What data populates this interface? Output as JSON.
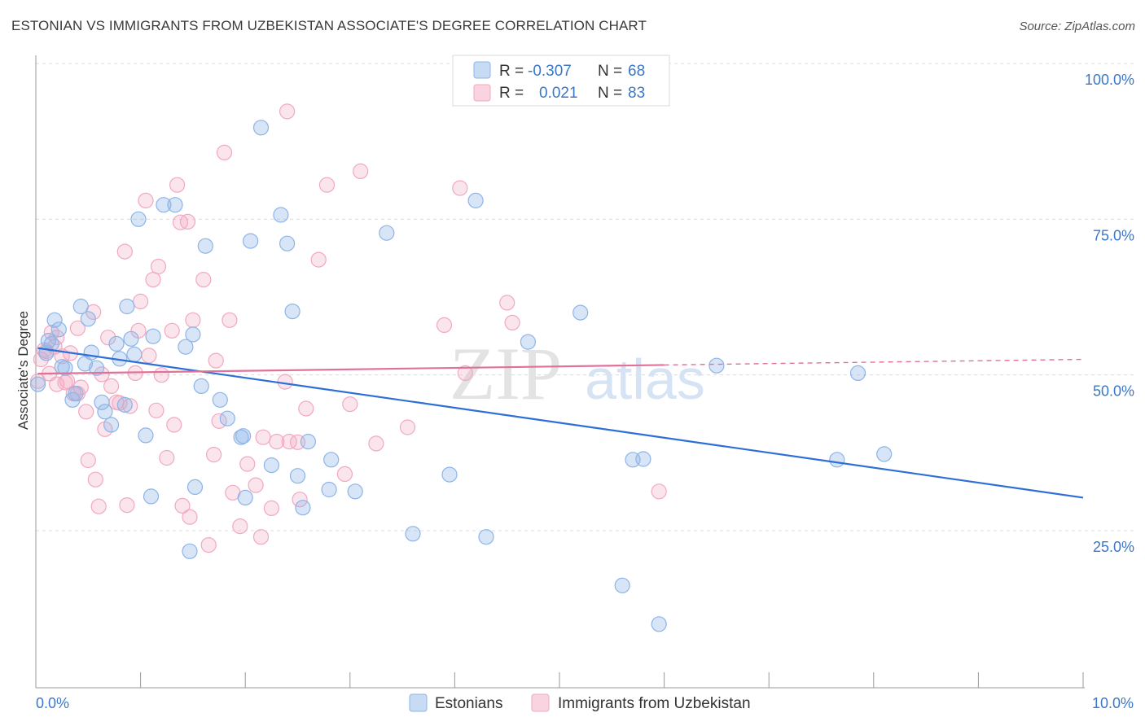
{
  "title": "ESTONIAN VS IMMIGRANTS FROM UZBEKISTAN ASSOCIATE'S DEGREE CORRELATION CHART",
  "source": "Source: ZipAtlas.com",
  "watermark": {
    "zip": "ZIP",
    "atlas": "atlas"
  },
  "legend_top": {
    "rows": [
      {
        "r_label": "R =",
        "r_value": "-0.307",
        "n_label": "N =",
        "n_value": "68",
        "color": "#8db4e8"
      },
      {
        "r_label": "R =",
        "r_value": "0.021",
        "n_label": "N =",
        "n_value": "83",
        "color": "#f2a8c0"
      }
    ]
  },
  "chart_data": {
    "type": "scatter",
    "title": "ESTONIAN VS IMMIGRANTS FROM UZBEKISTAN ASSOCIATE'S DEGREE CORRELATION CHART",
    "xlabel": "",
    "ylabel": "Associate's Degree",
    "xlim": [
      0,
      10
    ],
    "ylim": [
      0,
      102
    ],
    "x_tick_labels": [
      "0.0%",
      "10.0%"
    ],
    "y_tick_labels": [
      "25.0%",
      "50.0%",
      "75.0%",
      "100.0%"
    ],
    "y_ticks": [
      25,
      50,
      75,
      100
    ],
    "grid": true,
    "legend_position": "bottom",
    "series": [
      {
        "name": "Estonians",
        "color": "#8db4e8",
        "line_color": "#2d6fd6",
        "trend": {
          "x0": 0.02,
          "y0": 54.3,
          "x1": 10.0,
          "y1": 30.3,
          "dashed_from": null
        },
        "points": [
          [
            0.02,
            48.5
          ],
          [
            0.1,
            53.5
          ],
          [
            0.12,
            55.5
          ],
          [
            0.15,
            55.0
          ],
          [
            0.18,
            58.8
          ],
          [
            0.22,
            57.3
          ],
          [
            0.25,
            51.3
          ],
          [
            0.28,
            51.1
          ],
          [
            0.35,
            46.0
          ],
          [
            0.38,
            47.0
          ],
          [
            0.43,
            61.0
          ],
          [
            0.47,
            51.8
          ],
          [
            0.5,
            59.0
          ],
          [
            0.53,
            53.6
          ],
          [
            0.58,
            51.1
          ],
          [
            0.63,
            45.6
          ],
          [
            0.66,
            44.1
          ],
          [
            0.72,
            42.0
          ],
          [
            0.77,
            55.0
          ],
          [
            0.8,
            52.6
          ],
          [
            0.85,
            45.2
          ],
          [
            0.87,
            61.0
          ],
          [
            0.91,
            55.8
          ],
          [
            0.94,
            53.3
          ],
          [
            0.98,
            75.0
          ],
          [
            1.05,
            40.3
          ],
          [
            1.1,
            30.5
          ],
          [
            1.12,
            56.2
          ],
          [
            1.22,
            77.3
          ],
          [
            1.33,
            77.3
          ],
          [
            1.43,
            54.5
          ],
          [
            1.47,
            21.7
          ],
          [
            1.5,
            56.5
          ],
          [
            1.52,
            32.0
          ],
          [
            1.58,
            48.2
          ],
          [
            1.62,
            70.7
          ],
          [
            1.76,
            46.0
          ],
          [
            1.83,
            43.0
          ],
          [
            1.96,
            40.0
          ],
          [
            1.98,
            40.2
          ],
          [
            2.0,
            30.3
          ],
          [
            2.05,
            71.5
          ],
          [
            2.15,
            89.7
          ],
          [
            2.25,
            35.5
          ],
          [
            2.34,
            75.7
          ],
          [
            2.4,
            71.1
          ],
          [
            2.45,
            60.2
          ],
          [
            2.5,
            33.8
          ],
          [
            2.55,
            28.7
          ],
          [
            2.6,
            39.3
          ],
          [
            2.8,
            31.6
          ],
          [
            2.82,
            36.4
          ],
          [
            3.05,
            31.3
          ],
          [
            3.35,
            72.8
          ],
          [
            3.6,
            24.5
          ],
          [
            3.95,
            34.0
          ],
          [
            4.2,
            78.0
          ],
          [
            4.3,
            24.0
          ],
          [
            4.7,
            55.3
          ],
          [
            5.2,
            60.0
          ],
          [
            5.6,
            16.2
          ],
          [
            5.7,
            36.4
          ],
          [
            5.8,
            36.5
          ],
          [
            5.95,
            10.0
          ],
          [
            6.5,
            51.5
          ],
          [
            7.65,
            36.4
          ],
          [
            7.85,
            50.3
          ],
          [
            8.1,
            37.3
          ]
        ]
      },
      {
        "name": "Immigrants from Uzbekistan",
        "color": "#f2a8c0",
        "line_color": "#e0729a",
        "trend": {
          "x0": 0.02,
          "y0": 50.2,
          "x1": 6.0,
          "y1": 51.6,
          "dashed_from": 6.0,
          "x_end": 10.0,
          "y_end": 52.5
        },
        "points": [
          [
            0.02,
            49.0
          ],
          [
            0.05,
            52.5
          ],
          [
            0.08,
            54.0
          ],
          [
            0.1,
            53.8
          ],
          [
            0.13,
            50.2
          ],
          [
            0.15,
            56.8
          ],
          [
            0.18,
            54.5
          ],
          [
            0.2,
            48.5
          ],
          [
            0.25,
            53.0
          ],
          [
            0.28,
            48.8
          ],
          [
            0.3,
            49.0
          ],
          [
            0.33,
            53.5
          ],
          [
            0.36,
            47.0
          ],
          [
            0.4,
            57.5
          ],
          [
            0.43,
            48.0
          ],
          [
            0.48,
            44.1
          ],
          [
            0.5,
            36.3
          ],
          [
            0.55,
            60.1
          ],
          [
            0.57,
            33.2
          ],
          [
            0.6,
            28.9
          ],
          [
            0.63,
            50.1
          ],
          [
            0.66,
            41.3
          ],
          [
            0.69,
            56.0
          ],
          [
            0.72,
            48.2
          ],
          [
            0.77,
            45.6
          ],
          [
            0.8,
            45.5
          ],
          [
            0.85,
            69.8
          ],
          [
            0.87,
            29.1
          ],
          [
            0.9,
            45.0
          ],
          [
            0.95,
            50.3
          ],
          [
            0.98,
            57.1
          ],
          [
            1.0,
            61.8
          ],
          [
            1.05,
            78.0
          ],
          [
            1.08,
            53.1
          ],
          [
            1.12,
            65.3
          ],
          [
            1.15,
            44.3
          ],
          [
            1.17,
            67.4
          ],
          [
            1.2,
            50.0
          ],
          [
            1.25,
            36.7
          ],
          [
            1.3,
            57.1
          ],
          [
            1.32,
            42.0
          ],
          [
            1.35,
            80.5
          ],
          [
            1.38,
            74.5
          ],
          [
            1.4,
            29.0
          ],
          [
            1.45,
            74.6
          ],
          [
            1.47,
            27.2
          ],
          [
            1.5,
            58.8
          ],
          [
            1.6,
            65.3
          ],
          [
            1.65,
            22.7
          ],
          [
            1.7,
            37.2
          ],
          [
            1.72,
            52.3
          ],
          [
            1.75,
            42.6
          ],
          [
            1.8,
            85.7
          ],
          [
            1.85,
            58.8
          ],
          [
            1.88,
            31.1
          ],
          [
            1.95,
            25.7
          ],
          [
            2.02,
            35.7
          ],
          [
            2.1,
            32.3
          ],
          [
            2.15,
            24.0
          ],
          [
            2.17,
            40.0
          ],
          [
            2.25,
            28.6
          ],
          [
            2.3,
            39.3
          ],
          [
            2.38,
            48.9
          ],
          [
            2.4,
            92.3
          ],
          [
            2.42,
            39.3
          ],
          [
            2.5,
            39.2
          ],
          [
            2.52,
            30.0
          ],
          [
            2.58,
            44.6
          ],
          [
            2.7,
            68.5
          ],
          [
            2.78,
            80.5
          ],
          [
            2.95,
            34.1
          ],
          [
            3.0,
            45.3
          ],
          [
            3.1,
            82.7
          ],
          [
            3.25,
            39.0
          ],
          [
            3.55,
            41.6
          ],
          [
            3.9,
            58.0
          ],
          [
            4.05,
            80.0
          ],
          [
            4.1,
            50.3
          ],
          [
            4.5,
            61.6
          ],
          [
            4.55,
            58.4
          ],
          [
            5.95,
            31.3
          ],
          [
            0.2,
            56.0
          ],
          [
            0.4,
            47.0
          ]
        ]
      }
    ]
  }
}
